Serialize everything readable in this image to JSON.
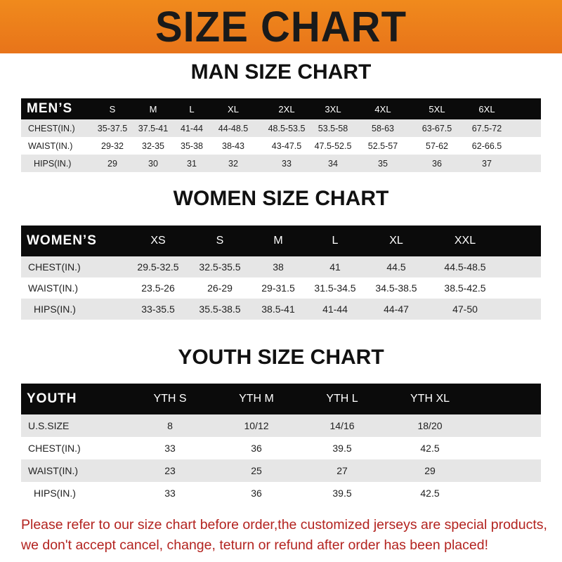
{
  "banner": {
    "title": "SIZE CHART"
  },
  "men": {
    "title": "MAN SIZE CHART",
    "header": "MEN’S",
    "sizes": [
      "S",
      "M",
      "L",
      "XL",
      "2XL",
      "3XL",
      "4XL",
      "5XL",
      "6XL"
    ],
    "rows": [
      {
        "label": "CHEST(IN.)",
        "values": [
          "35-37.5",
          "37.5-41",
          "41-44",
          "44-48.5",
          "48.5-53.5",
          "53.5-58",
          "58-63",
          "63-67.5",
          "67.5-72"
        ]
      },
      {
        "label": "WAIST(IN.)",
        "values": [
          "29-32",
          "32-35",
          "35-38",
          "38-43",
          "43-47.5",
          "47.5-52.5",
          "52.5-57",
          "57-62",
          "62-66.5"
        ]
      },
      {
        "label": "HIPS(IN.)",
        "values": [
          "29",
          "30",
          "31",
          "32",
          "33",
          "34",
          "35",
          "36",
          "37"
        ]
      }
    ]
  },
  "women": {
    "title": "WOMEN SIZE CHART",
    "header": "WOMEN’S",
    "sizes": [
      "XS",
      "S",
      "M",
      "L",
      "XL",
      "XXL"
    ],
    "rows": [
      {
        "label": "CHEST(IN.)",
        "values": [
          "29.5-32.5",
          "32.5-35.5",
          "38",
          "41",
          "44.5",
          "44.5-48.5"
        ]
      },
      {
        "label": "WAIST(IN.)",
        "values": [
          "23.5-26",
          "26-29",
          "29-31.5",
          "31.5-34.5",
          "34.5-38.5",
          "38.5-42.5"
        ]
      },
      {
        "label": "HIPS(IN.)",
        "values": [
          "33-35.5",
          "35.5-38.5",
          "38.5-41",
          "41-44",
          "44-47",
          "47-50"
        ]
      }
    ]
  },
  "youth": {
    "title": "YOUTH SIZE CHART",
    "header": "YOUTH",
    "sizes": [
      "YTH S",
      "YTH M",
      "YTH L",
      "YTH XL"
    ],
    "rows": [
      {
        "label": "U.S.SIZE",
        "values": [
          "8",
          "10/12",
          "14/16",
          "18/20"
        ]
      },
      {
        "label": "CHEST(IN.)",
        "values": [
          "33",
          "36",
          "39.5",
          "42.5"
        ]
      },
      {
        "label": "WAIST(IN.)",
        "values": [
          "23",
          "25",
          "27",
          "29"
        ]
      },
      {
        "label": "HIPS(IN.)",
        "values": [
          "33",
          "36",
          "39.5",
          "42.5"
        ]
      }
    ]
  },
  "notice": {
    "line1": "Please refer to our size chart before order,the customized jerseys are special products,",
    "line2": "we don't accept cancel, change, teturn or refund after order has been placed!"
  }
}
